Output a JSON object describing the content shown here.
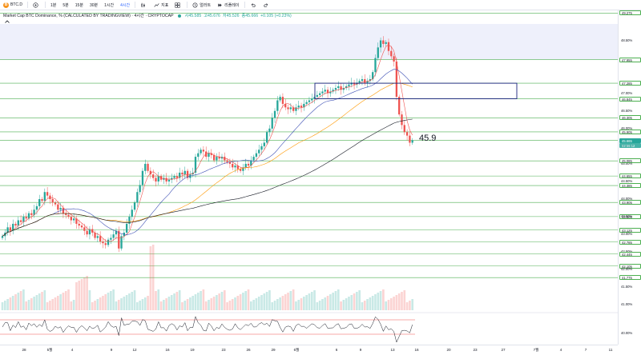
{
  "toolbar": {
    "symbol": "BTC.D",
    "symbol_logo": "B",
    "intervals": [
      "1분",
      "5분",
      "15분",
      "30분",
      "1시간",
      "4시간"
    ],
    "active_interval": "4시간",
    "indicators_label": "지표",
    "alert_label": "얼러트",
    "replay_label": "리플레이",
    "icons": [
      "add-icon",
      "candles-icon",
      "indicators-icon",
      "templates-icon",
      "alert-icon",
      "replay-icon",
      "undo-icon",
      "redo-icon"
    ]
  },
  "legend": {
    "title": "Market Cap BTC Dominance, % (CALCULATED BY TRADINGVIEW) · 4시간 · CRYPTOCAP",
    "ohlc": [
      "시45.585",
      "고45.676",
      "저45.526",
      "종45.666"
    ],
    "change": "+0.105 (+0.23%)"
  },
  "annotation": "45.9",
  "colors": {
    "up": "#26a69a",
    "down": "#ef5350",
    "ma_fast": "#ef5350",
    "ma_mid": "#3f51b5",
    "ma_slow": "#ff9800",
    "ma_long": "#131722",
    "zone_border": "#1a237e",
    "zone_fill": "#e8eaf6",
    "hline": "#4caf50",
    "rsi": "#131722",
    "rsi_band": "#ef5350"
  },
  "chart_data": {
    "type": "candlestick",
    "title": "Market Cap BTC Dominance, % (CALCULATED BY TRADINGVIEW)",
    "interval": "4시간",
    "ylim": [
      40.85,
      49.35
    ],
    "close_series": [
      42.95,
      43.05,
      43.2,
      43.1,
      43.3,
      43.25,
      43.4,
      43.35,
      43.5,
      43.45,
      43.6,
      43.55,
      43.7,
      43.8,
      44.0,
      43.95,
      44.2,
      44.1,
      44.0,
      43.9,
      43.85,
      43.7,
      43.75,
      43.6,
      43.55,
      43.5,
      43.4,
      43.45,
      43.3,
      43.25,
      43.2,
      43.1,
      43.0,
      43.15,
      43.05,
      42.9,
      42.95,
      42.8,
      42.75,
      42.7,
      42.85,
      42.9,
      43.0,
      43.1,
      42.6,
      42.95,
      43.05,
      43.3,
      43.5,
      43.7,
      43.9,
      44.2,
      44.4,
      44.8,
      45.0,
      44.8,
      44.7,
      44.6,
      44.5,
      44.65,
      44.55,
      44.6,
      44.5,
      44.55,
      44.6,
      44.65,
      44.6,
      44.75,
      44.7,
      44.8,
      44.6,
      44.7,
      44.75,
      45.2,
      45.3,
      45.4,
      45.35,
      45.2,
      45.3,
      45.25,
      45.1,
      45.2,
      45.15,
      45.2,
      45.1,
      45.05,
      45.0,
      44.9,
      44.95,
      44.85,
      44.8,
      44.9,
      45.0,
      44.95,
      45.1,
      45.2,
      45.3,
      45.4,
      45.5,
      45.6,
      45.9,
      46.0,
      46.3,
      46.5,
      46.8,
      46.9,
      46.7,
      46.6,
      46.55,
      46.6,
      46.5,
      46.6,
      46.65,
      46.6,
      46.7,
      46.75,
      46.8,
      46.85,
      46.9,
      46.95,
      47.0,
      47.05,
      47.1,
      47.0,
      47.05,
      47.1,
      47.15,
      47.2,
      47.1,
      47.15,
      47.2,
      47.25,
      47.3,
      47.25,
      47.3,
      47.35,
      47.4,
      47.3,
      47.35,
      47.4,
      47.6,
      48.0,
      48.3,
      48.5,
      48.4,
      48.45,
      48.2,
      48.05,
      47.9,
      46.9,
      46.4,
      46.1,
      45.9,
      45.8,
      45.6,
      45.67
    ],
    "horizontal_levels": [
      49.275,
      47.955,
      47.285,
      46.845,
      46.305,
      45.905,
      45.665,
      45.085,
      44.655,
      44.385,
      43.905,
      43.505,
      43.125,
      42.785,
      42.445,
      42.105,
      41.775
    ],
    "highlight_zone": {
      "top": 47.285,
      "bottom": 46.845
    },
    "y_tick_labels": [
      "49.275",
      "48.50%",
      "47.955",
      "47.285",
      "47.00%",
      "46.845",
      "46.50%",
      "46.305",
      "46.00%",
      "45.905",
      "45.665",
      "45.50%",
      "45.00%",
      "45.085",
      "44.655",
      "44.50%",
      "44.385",
      "44.00%",
      "43.905",
      "43.505",
      "43.50%",
      "43.125",
      "43.00%",
      "42.785",
      "42.50%",
      "42.445",
      "42.105",
      "42.00%",
      "41.775",
      "41.50%",
      "41.00%",
      "40.00%"
    ],
    "price_badge": "45.665",
    "price_countdown": "02:59:12",
    "x_tick_labels": [
      "28",
      "5월",
      "4",
      "9",
      "12",
      "16",
      "19",
      "23",
      "26",
      "29",
      "6월",
      "6",
      "9",
      "13",
      "16",
      "20",
      "23",
      "27",
      "7월",
      "4",
      "7",
      "11"
    ],
    "rsi_label": "40.00%"
  }
}
